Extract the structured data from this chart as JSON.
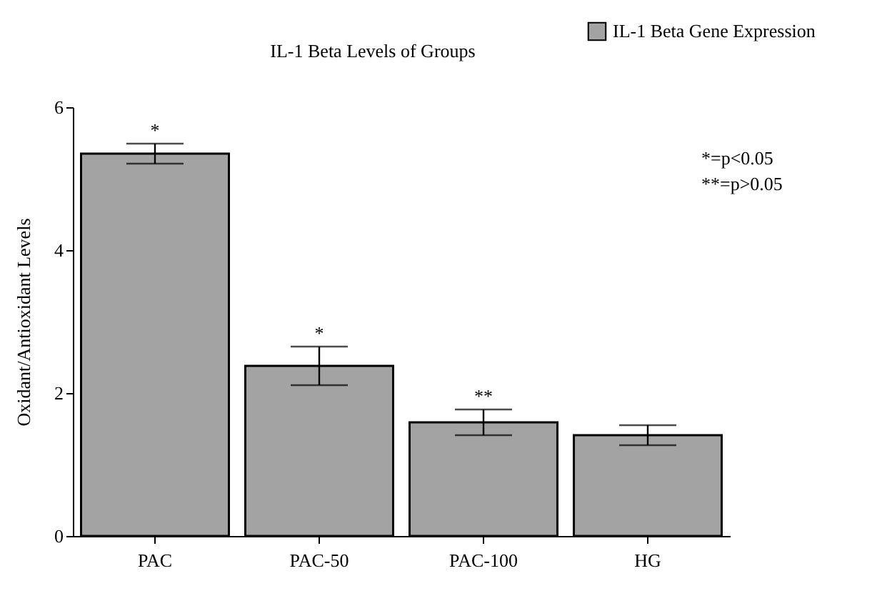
{
  "chart_data": {
    "type": "bar",
    "title": "IL-1 Beta Levels of Groups",
    "ylabel": "Oxidant/Antioxidant Levels",
    "categories": [
      "PAC",
      "PAC-50",
      "PAC-100",
      "HG"
    ],
    "series": [
      {
        "name": "IL-1 Beta Gene Expression",
        "color": "#a3a3a3",
        "values": [
          5.35,
          2.38,
          1.59,
          1.41
        ],
        "errors": [
          0.14,
          0.27,
          0.18,
          0.14
        ]
      }
    ],
    "ylim": [
      0,
      6
    ],
    "yticks": [
      0,
      2,
      4,
      6
    ],
    "grid": false,
    "legend": "top right",
    "annotations": [
      {
        "text": "*",
        "x": "PAC",
        "y": 5.49
      },
      {
        "text": "*",
        "x": "PAC-50",
        "y": 2.65
      },
      {
        "text": "**",
        "x": "PAC-100",
        "y": 1.77
      },
      "*=p<0.05",
      "**=p>0.05"
    ]
  }
}
